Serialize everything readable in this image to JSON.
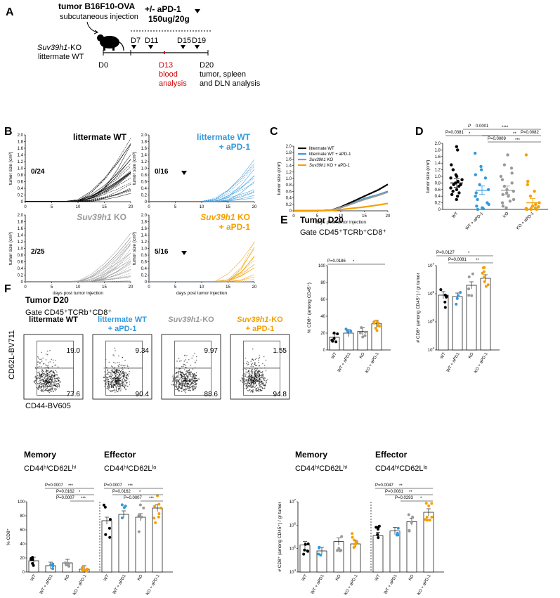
{
  "colors": {
    "wt": "#000000",
    "wt_apd1": "#3399dd",
    "ko": "#999999",
    "ko_apd1": "#f5a000",
    "red": "#d00000",
    "bar_fill": "#ffffff"
  },
  "panelA": {
    "label": "A",
    "title": "tumor B16F10-OVA",
    "subtitle": "subcutaneous injection",
    "treatment": "+/- aPD-1",
    "dose": "150ug/20g",
    "mouse_gene": "Suv39h1",
    "mouse_rest": "-KO",
    "mouse_line2": "littermate WT",
    "days": [
      "D0",
      "D7",
      "D11",
      "D13",
      "D15",
      "D19",
      "D20"
    ],
    "blood_line1": "blood",
    "blood_line2": "analysis",
    "end_line1": "tumor, spleen",
    "end_line2": "and DLN analysis"
  },
  "panelB": {
    "label": "B",
    "ylabel": "tumor size (cm³)",
    "xlabel": "days post tumor injection",
    "yticks": [
      "0",
      "0.2",
      "0.4",
      "0.6",
      "0.8",
      "1.0",
      "1.2",
      "1.4",
      "1.6",
      "1.8",
      "2.0"
    ],
    "xticks": [
      "0",
      "5",
      "10",
      "15",
      "20"
    ],
    "panels": [
      {
        "title": "littermate WT",
        "title2": "",
        "ratio": "0/24",
        "color": "#000000",
        "arrow": false
      },
      {
        "title": "littermate WT",
        "title2": "+ aPD-1",
        "ratio": "0/16",
        "color": "#3399dd",
        "arrow": true
      },
      {
        "title_i": "Suv39h1",
        "title": " KO",
        "title2": "",
        "ratio": "2/25",
        "color": "#999999",
        "arrow": false
      },
      {
        "title_i": "Suv39h1",
        "title": " KO",
        "title2": "+ aPD-1",
        "ratio": "5/16",
        "color": "#f5a000",
        "arrow": true
      }
    ]
  },
  "panelC": {
    "label": "C",
    "ylabel": "tumor size (cm³)",
    "xlabel": "days post tumor injection",
    "legend": [
      "littermate WT",
      "littermate WT + aPD-1",
      "Suv39h1 KO",
      "Suv39h1 KO + aPD-1"
    ]
  },
  "panelD": {
    "label": "D",
    "ylabel": "tumor size (cm³)",
    "groups": [
      "WT",
      "WT + aPD-1",
      "KO",
      "KO + aPD-1"
    ],
    "pvals": [
      "P",
      "0.0001",
      "****",
      "P=0.0381",
      "*",
      "**",
      "P=0.0082",
      "P=0.0009",
      "***"
    ]
  },
  "panelE": {
    "label": "E",
    "title": "Tumor D20",
    "gate": "Gate CD45⁺TCRb⁺CD8⁺",
    "left_ylabel": "% CD8⁺ (among CD45⁺)",
    "left_p": "P=0.0186",
    "left_star": "*",
    "right_ylabel": "# CD8⁺ (among CD45⁺) / gr tumor",
    "right_p1": "P=0.0127",
    "right_s1": "*",
    "right_p2": "P=0.0081",
    "right_s2": "**",
    "groups": [
      "WT",
      "WT + aPD1",
      "KO",
      "KO + aPD-1"
    ]
  },
  "panelF": {
    "label": "F",
    "title": "Tumor D20",
    "gate": "Gate CD45⁺TCRb⁺CD8⁺",
    "flow_titles": [
      "littermate WT",
      "littermate WT",
      "Suv39h1",
      "Suv39h1"
    ],
    "flow_titles_rest": [
      "",
      "",
      "-KO",
      "-KO"
    ],
    "flow_titles2": [
      "",
      "+ aPD-1",
      "",
      "+ aPD-1"
    ],
    "upper_vals": [
      "19.0",
      "9.34",
      "9.97",
      "1.55"
    ],
    "lower_vals": [
      "77.6",
      "90.4",
      "88.6",
      "94.8"
    ],
    "yaxis": "CD62L-BV711",
    "xaxis": "CD44-BV605",
    "mem": "Memory",
    "eff": "Effector",
    "mem_marker": "CD44ʰⁱCD62Lʰⁱ",
    "eff_marker": "CD44ʰⁱCD62Lˡᵒ",
    "left_ylabel": "% CD8⁺",
    "right_ylabel": "# CD8⁺ (among CD45⁺) / gr tumor",
    "groups": [
      "WT",
      "WT + aPD1",
      "KO",
      "KO + aPD-1"
    ],
    "left_p": [
      "P=0.0007",
      "***",
      "P=0.0162",
      "*",
      "P=0.0007",
      "***",
      "P=0.0007",
      "***",
      "P=0.0162",
      "*",
      "P=0.0007",
      "***"
    ],
    "right_p": [
      "P=0.0047",
      "**",
      "P=0.0081",
      "**",
      "P=0.0293",
      "*"
    ]
  },
  "chart_data": [
    {
      "type": "line",
      "id": "B",
      "title": "individual tumor growth curves",
      "x": [
        0,
        5,
        10,
        15,
        20
      ],
      "ylim": [
        0,
        2.0
      ],
      "xlabel": "days post tumor injection",
      "ylabel": "tumor size (cm³)"
    },
    {
      "type": "line",
      "id": "C",
      "x": [
        0,
        5,
        8,
        10,
        12,
        15,
        18,
        20
      ],
      "series": [
        {
          "name": "littermate WT",
          "values": [
            0,
            0,
            0.02,
            0.12,
            0.25,
            0.45,
            0.65,
            0.82
          ]
        },
        {
          "name": "littermate WT + aPD-1",
          "values": [
            0,
            0,
            0.02,
            0.1,
            0.2,
            0.38,
            0.5,
            0.6
          ]
        },
        {
          "name": "Suv39h1 KO",
          "values": [
            0,
            0,
            0.02,
            0.1,
            0.2,
            0.35,
            0.48,
            0.58
          ]
        },
        {
          "name": "Suv39h1 KO + aPD-1",
          "values": [
            0,
            0,
            0.01,
            0.04,
            0.07,
            0.12,
            0.18,
            0.23
          ]
        }
      ],
      "ylim": [
        0,
        2.0
      ]
    },
    {
      "type": "scatter",
      "id": "D",
      "categories": [
        "WT",
        "WT + aPD-1",
        "KO",
        "KO + aPD-1"
      ],
      "means": [
        0.8,
        0.58,
        0.58,
        0.2
      ],
      "points": [
        [
          1.9,
          1.8,
          1.35,
          1.2,
          1.05,
          1.0,
          0.95,
          0.9,
          0.85,
          0.8,
          0.75,
          0.75,
          0.7,
          0.65,
          0.6,
          0.55,
          0.5,
          0.45,
          0.4,
          0.3
        ],
        [
          1.7,
          1.3,
          1.2,
          1.05,
          0.95,
          0.75,
          0.6,
          0.5,
          0.4,
          0.3,
          0.2,
          0.15,
          0.1,
          0.05,
          0.02,
          0.0
        ],
        [
          1.65,
          1.35,
          1.25,
          1.1,
          1.0,
          0.9,
          0.8,
          0.7,
          0.6,
          0.55,
          0.5,
          0.45,
          0.4,
          0.3,
          0.25,
          0.2,
          0.1,
          0.05
        ],
        [
          1.65,
          0.85,
          0.75,
          0.55,
          0.4,
          0.2,
          0.15,
          0.1,
          0.08,
          0.05,
          0.03,
          0.02,
          0.01,
          0.0,
          0.0,
          0.0
        ]
      ],
      "ylim": [
        0,
        2.0
      ]
    },
    {
      "type": "bar",
      "id": "E-left",
      "categories": [
        "WT",
        "WT + aPD1",
        "KO",
        "KO + aPD-1"
      ],
      "values": [
        15,
        20,
        22,
        31
      ],
      "ylim": [
        0,
        100
      ]
    },
    {
      "type": "bar",
      "id": "E-right",
      "categories": [
        "WT",
        "WT + aPD1",
        "KO",
        "KO + aPD-1"
      ],
      "values_log10": [
        5.95,
        5.9,
        6.3,
        6.55
      ],
      "ylim_log10": [
        4,
        7
      ]
    },
    {
      "type": "bar",
      "id": "F-left",
      "categories": [
        "WT",
        "WT + aPD1",
        "KO",
        "KO + aPD-1",
        "WT",
        "WT + aPD1",
        "KO",
        "KO + aPD-1"
      ],
      "values": [
        16,
        9,
        13,
        4,
        73,
        82,
        78,
        91
      ],
      "ylim": [
        0,
        100
      ]
    },
    {
      "type": "bar",
      "id": "F-right",
      "categories": [
        "WT",
        "WT + aPD1",
        "KO",
        "KO + aPD-1",
        "WT",
        "WT + aPD1",
        "KO",
        "KO + aPD-1"
      ],
      "values_log10": [
        5.15,
        4.9,
        5.3,
        5.2,
        5.55,
        5.75,
        6.15,
        6.55
      ],
      "ylim_log10": [
        4,
        7
      ]
    }
  ]
}
